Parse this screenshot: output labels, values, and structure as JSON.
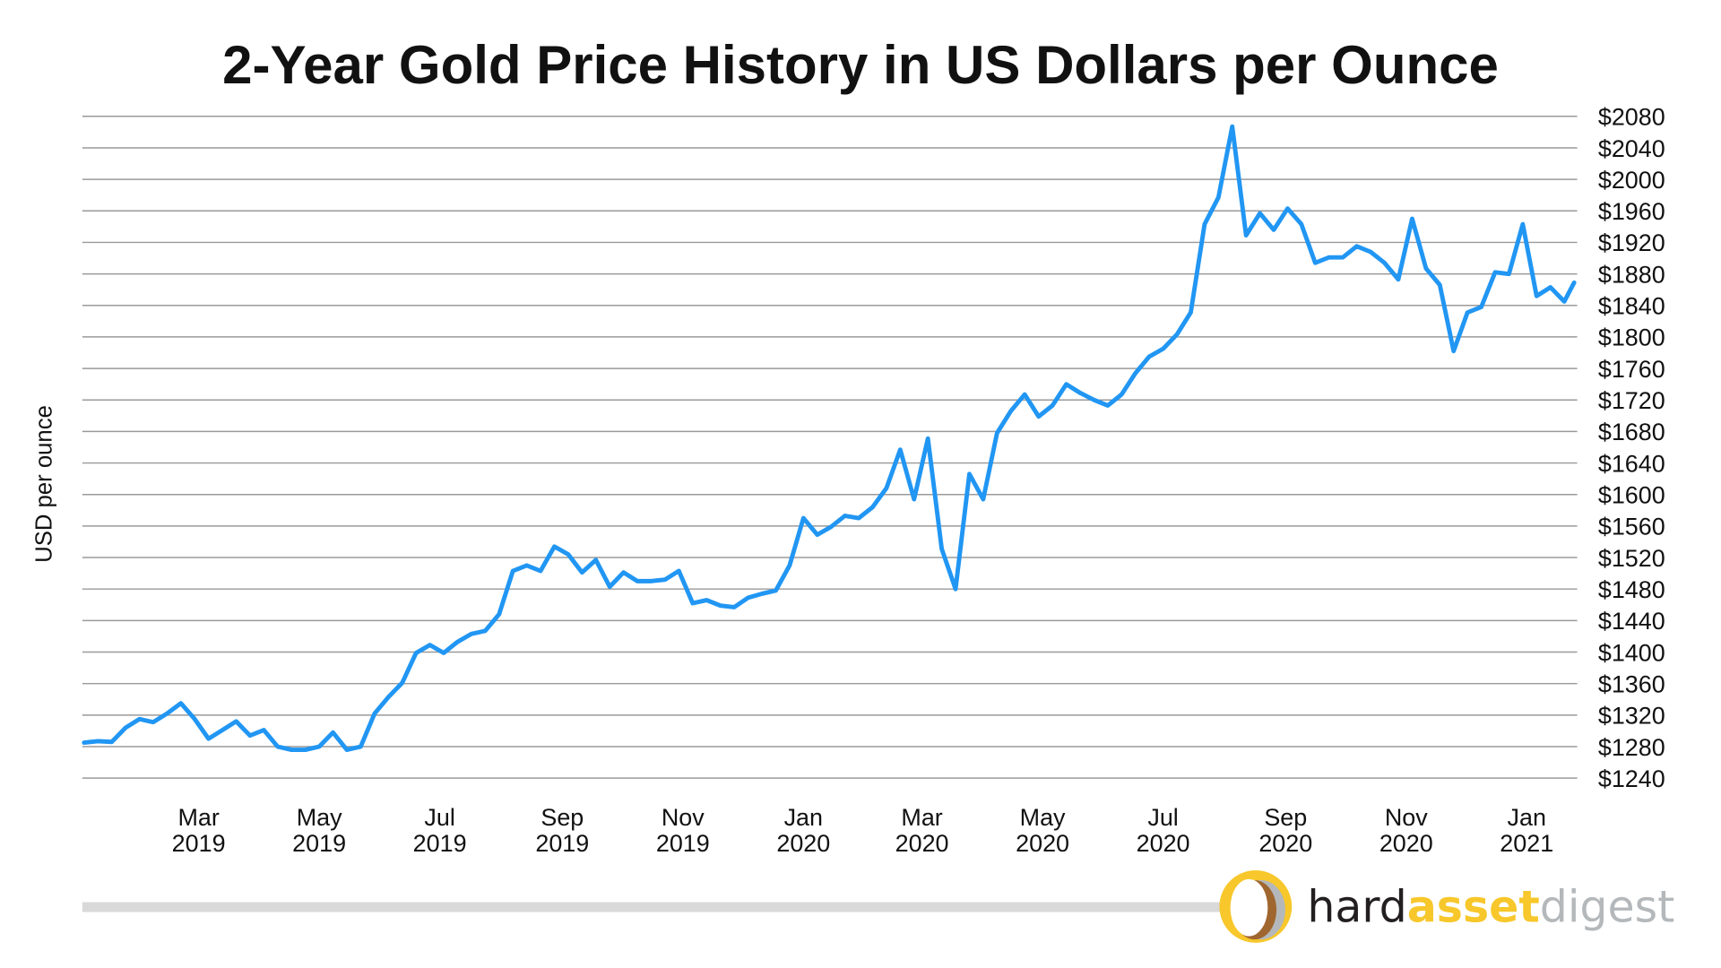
{
  "chart_data": {
    "type": "line",
    "title": "2-Year Gold Price History in US Dollars per Ounce",
    "ylabel": "USD per ounce",
    "xlabel": "",
    "ylim": [
      1240,
      2080
    ],
    "y_tick_step": 40,
    "y_tick_prefix": "$",
    "y_axis_side": "right",
    "grid": "horizontal",
    "line_color": "#2196F3",
    "x_ticks": [
      {
        "date": "2019-03-01",
        "month": "Mar",
        "year": "2019"
      },
      {
        "date": "2019-05-01",
        "month": "May",
        "year": "2019"
      },
      {
        "date": "2019-07-01",
        "month": "Jul",
        "year": "2019"
      },
      {
        "date": "2019-09-01",
        "month": "Sep",
        "year": "2019"
      },
      {
        "date": "2019-11-01",
        "month": "Nov",
        "year": "2019"
      },
      {
        "date": "2020-01-01",
        "month": "Jan",
        "year": "2020"
      },
      {
        "date": "2020-03-01",
        "month": "Mar",
        "year": "2020"
      },
      {
        "date": "2020-05-01",
        "month": "May",
        "year": "2020"
      },
      {
        "date": "2020-07-01",
        "month": "Jul",
        "year": "2020"
      },
      {
        "date": "2020-09-01",
        "month": "Sep",
        "year": "2020"
      },
      {
        "date": "2020-11-01",
        "month": "Nov",
        "year": "2020"
      },
      {
        "date": "2021-01-01",
        "month": "Jan",
        "year": "2021"
      }
    ],
    "x": [
      "2019-01-02",
      "2019-01-09",
      "2019-01-16",
      "2019-01-23",
      "2019-01-30",
      "2019-02-06",
      "2019-02-13",
      "2019-02-20",
      "2019-02-27",
      "2019-03-06",
      "2019-03-13",
      "2019-03-20",
      "2019-03-27",
      "2019-04-03",
      "2019-04-10",
      "2019-04-17",
      "2019-04-24",
      "2019-05-01",
      "2019-05-08",
      "2019-05-15",
      "2019-05-22",
      "2019-05-29",
      "2019-06-05",
      "2019-06-12",
      "2019-06-19",
      "2019-06-26",
      "2019-07-03",
      "2019-07-10",
      "2019-07-17",
      "2019-07-24",
      "2019-07-31",
      "2019-08-07",
      "2019-08-14",
      "2019-08-21",
      "2019-08-28",
      "2019-09-04",
      "2019-09-11",
      "2019-09-18",
      "2019-09-25",
      "2019-10-02",
      "2019-10-09",
      "2019-10-16",
      "2019-10-23",
      "2019-10-30",
      "2019-11-06",
      "2019-11-13",
      "2019-11-20",
      "2019-11-27",
      "2019-12-04",
      "2019-12-11",
      "2019-12-18",
      "2019-12-25",
      "2020-01-01",
      "2020-01-08",
      "2020-01-15",
      "2020-01-22",
      "2020-01-29",
      "2020-02-05",
      "2020-02-12",
      "2020-02-19",
      "2020-02-26",
      "2020-03-04",
      "2020-03-11",
      "2020-03-18",
      "2020-03-25",
      "2020-04-01",
      "2020-04-08",
      "2020-04-15",
      "2020-04-22",
      "2020-04-29",
      "2020-05-06",
      "2020-05-13",
      "2020-05-20",
      "2020-05-27",
      "2020-06-03",
      "2020-06-10",
      "2020-06-17",
      "2020-06-24",
      "2020-07-01",
      "2020-07-08",
      "2020-07-15",
      "2020-07-22",
      "2020-07-29",
      "2020-08-05",
      "2020-08-12",
      "2020-08-19",
      "2020-08-26",
      "2020-09-02",
      "2020-09-09",
      "2020-09-16",
      "2020-09-23",
      "2020-09-30",
      "2020-10-07",
      "2020-10-14",
      "2020-10-21",
      "2020-10-28",
      "2020-11-04",
      "2020-11-11",
      "2020-11-18",
      "2020-11-25",
      "2020-12-02",
      "2020-12-09",
      "2020-12-16",
      "2020-12-23",
      "2020-12-30",
      "2021-01-06",
      "2021-01-13",
      "2021-01-20",
      "2021-01-25"
    ],
    "series": [
      {
        "values": [
          1285,
          1287,
          1286,
          1304,
          1315,
          1311,
          1322,
          1335,
          1315,
          1290,
          1301,
          1312,
          1294,
          1301,
          1280,
          1276,
          1276,
          1280,
          1298,
          1276,
          1280,
          1322,
          1343,
          1361,
          1399,
          1409,
          1399,
          1413,
          1423,
          1427,
          1448,
          1503,
          1510,
          1503,
          1534,
          1524,
          1501,
          1517,
          1483,
          1501,
          1490,
          1490,
          1492,
          1503,
          1462,
          1466,
          1459,
          1457,
          1469,
          1474,
          1478,
          1510,
          1570,
          1549,
          1559,
          1573,
          1570,
          1584,
          1608,
          1657,
          1594,
          1671,
          1531,
          1480,
          1626,
          1594,
          1678,
          1706,
          1727,
          1699,
          1713,
          1740,
          1729,
          1720,
          1713,
          1727,
          1754,
          1775,
          1785,
          1803,
          1831,
          1943,
          1977,
          2067,
          1929,
          1957,
          1936,
          1963,
          1943,
          1894,
          1901,
          1901,
          1915,
          1908,
          1894,
          1873,
          1950,
          1887,
          1866,
          1782,
          1831,
          1838,
          1882,
          1880,
          1943,
          1852,
          1863,
          1845,
          1869
        ]
      }
    ]
  },
  "branding": {
    "logo_text_1": "hard",
    "logo_text_2": "asset",
    "logo_text_3": "digest",
    "colors": {
      "hard": "#231f20",
      "asset": "#f7c72b",
      "digest": "#b4b8bb",
      "ring": "#f7c72b",
      "crescent_brown": "#a0662f",
      "crescent_grey": "#b4b8bb",
      "bar": "#d9d9d9"
    }
  }
}
